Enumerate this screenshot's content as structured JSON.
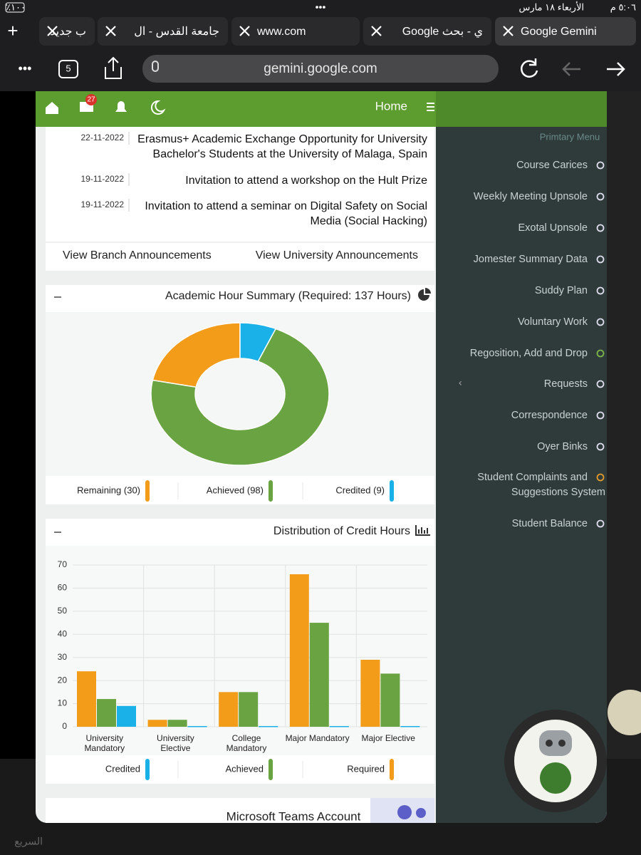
{
  "status_bar": {
    "time": "٥:٠٦ م",
    "date": "الأربعاء ١٨ مارس",
    "battery": "٪١٠٠"
  },
  "tabs": [
    "Google Gemini",
    "ي - بحث Google",
    "www.com",
    "جامعة القدس - ال",
    "ب جديد"
  ],
  "toolbar": {
    "tab_count": "5",
    "url": "gemini.google.com"
  },
  "app_header": {
    "mail_badge": "27",
    "home": "Home"
  },
  "announcements": [
    {
      "date": "22-11-2022",
      "lines": [
        "Erasmus+ Academic Exchange Opportunity for University",
        "Bachelor's Students at the University of Malaga, Spain"
      ]
    },
    {
      "date": "19-11-2022",
      "lines": [
        "Invitation to attend a workshop on the Hult Prize"
      ]
    },
    {
      "date": "19-11-2022",
      "lines": [
        "Invitation to attend a seminar on Digital Safety on Social",
        "Media (Social Hacking)"
      ]
    }
  ],
  "announcement_links": [
    "View Branch Announcements",
    "View University Announcements"
  ],
  "chart_data": [
    {
      "type": "donut",
      "title": "Academic Hour Summary (Required: 137 Hours)",
      "categories": [
        "Remaining",
        "Achieved",
        "Credited"
      ],
      "values": [
        30,
        98,
        9
      ],
      "legend_labels": [
        "Remaining (30)",
        "Achieved (98)",
        "Credited (9)"
      ],
      "colors": [
        "#f39c1a",
        "#6aa342",
        "#1ab0e8"
      ]
    },
    {
      "type": "bar",
      "title": "Distribution of Credit Hours",
      "categories": [
        [
          "University",
          "Mandatory"
        ],
        [
          "University",
          "Elective"
        ],
        [
          "College",
          "Mandatory"
        ],
        [
          "Major Mandatory"
        ],
        [
          "Major Elective"
        ]
      ],
      "series": [
        {
          "name": "Credited",
          "color": "#1ab0e8",
          "values": [
            9,
            0,
            0,
            0,
            0
          ]
        },
        {
          "name": "Achieved",
          "color": "#6aa342",
          "values": [
            12,
            3,
            15,
            45,
            23
          ]
        },
        {
          "name": "Required",
          "color": "#f39c1a",
          "values": [
            24,
            3,
            15,
            66,
            29
          ]
        }
      ],
      "ylim": [
        0,
        70
      ],
      "yticks": [
        0,
        10,
        20,
        30,
        40,
        50,
        60,
        70
      ],
      "grid": true
    }
  ],
  "teams_card": "Microsoft Teams Account",
  "sidebar": {
    "heading": "Primtary Menu",
    "items": [
      [
        "Course Carices"
      ],
      [
        "Weekly Meeting Upnsole"
      ],
      [
        "Exotal Upnsole"
      ],
      [
        "Jomester Summary Data"
      ],
      [
        "Suddy Plan"
      ],
      [
        "Voluntary Work"
      ],
      [
        "Regosition, Add and Drop"
      ],
      [
        "Requests"
      ],
      [
        "Correspondence"
      ],
      [
        "Oyer Binks"
      ],
      [
        "Student Complaints and",
        "Suggestions System"
      ],
      [
        "Student Balance"
      ]
    ]
  },
  "bottom_bar": "السريع"
}
